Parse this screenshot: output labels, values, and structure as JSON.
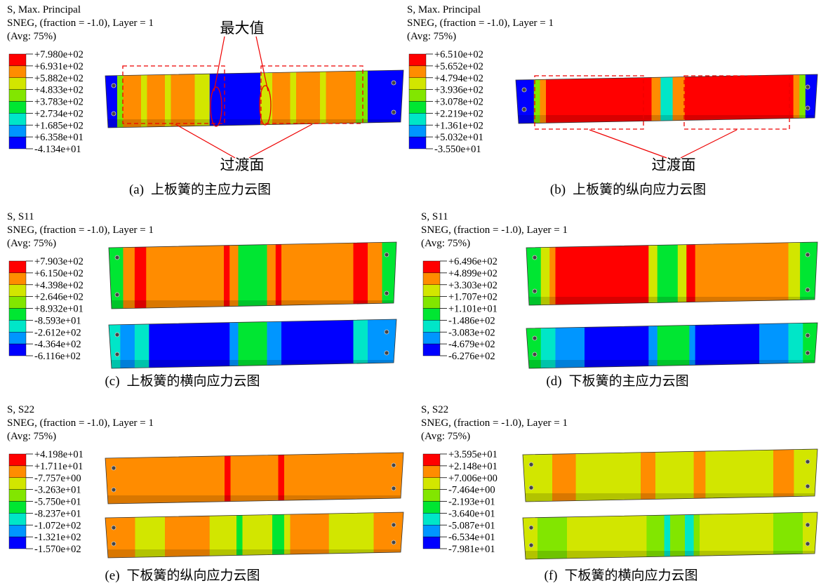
{
  "panels": [
    {
      "header": [
        "S, Max. Principal",
        "SNEG, (fraction = -1.0), Layer = 1",
        "(Avg: 75%)"
      ],
      "legend": [
        "+7.980e+02",
        "+6.931e+02",
        "+5.882e+02",
        "+4.833e+02",
        "+3.783e+02",
        "+2.734e+02",
        "+1.685e+02",
        "+6.358e+01",
        "-4.134e+01"
      ],
      "annotations": [
        "最大值",
        "过渡面"
      ],
      "caption": {
        "label": "(a)",
        "text": "上板簧的主应力云图"
      }
    },
    {
      "header": [
        "S, Max. Principal",
        "SNEG, (fraction = -1.0), Layer = 1",
        "(Avg: 75%)"
      ],
      "legend": [
        "+6.510e+02",
        "+5.652e+02",
        "+4.794e+02",
        "+3.936e+02",
        "+3.078e+02",
        "+2.219e+02",
        "+1.361e+02",
        "+5.032e+01",
        "-3.550e+01"
      ],
      "annotations": [
        "过渡面"
      ],
      "caption": {
        "label": "(b)",
        "text": "上板簧的纵向应力云图"
      }
    },
    {
      "header": [
        "S, S11",
        "SNEG, (fraction = -1.0), Layer = 1",
        "(Avg: 75%)"
      ],
      "legend": [
        "+7.903e+02",
        "+6.150e+02",
        "+4.398e+02",
        "+2.646e+02",
        "+8.932e+01",
        "-8.593e+01",
        "-2.612e+02",
        "-4.364e+02",
        "-6.116e+02"
      ],
      "annotations": [],
      "caption": {
        "label": "(c)",
        "text": "上板簧的横向应力云图"
      }
    },
    {
      "header": [
        "S, S11",
        "SNEG, (fraction = -1.0), Layer = 1",
        "(Avg: 75%)"
      ],
      "legend": [
        "+6.496e+02",
        "+4.899e+02",
        "+3.303e+02",
        "+1.707e+02",
        "+1.101e+01",
        "-1.486e+02",
        "-3.083e+02",
        "-4.679e+02",
        "-6.276e+02"
      ],
      "annotations": [],
      "caption": {
        "label": "(d)",
        "text": "下板簧的主应力云图"
      }
    },
    {
      "header": [
        "S, S22",
        "SNEG, (fraction = -1.0), Layer = 1",
        "(Avg: 75%)"
      ],
      "legend": [
        "+4.198e+01",
        "+1.711e+01",
        "-7.757e+00",
        "-3.263e+01",
        "-5.750e+01",
        "-8.237e+01",
        "-1.072e+02",
        "-1.321e+02",
        "-1.570e+02"
      ],
      "annotations": [],
      "caption": {
        "label": "(e)",
        "text": "下板簧的纵向应力云图"
      }
    },
    {
      "header": [
        "S, S22",
        "SNEG, (fraction = -1.0), Layer = 1",
        "(Avg: 75%)"
      ],
      "legend": [
        "+3.595e+01",
        "+2.148e+01",
        "+7.006e+00",
        "-7.464e+00",
        "-2.193e+01",
        "-3.640e+01",
        "-5.087e+01",
        "-6.534e+01",
        "-7.981e+01"
      ],
      "annotations": [],
      "caption": {
        "label": "(f)",
        "text": "下板簧的横向应力云图"
      }
    }
  ]
}
